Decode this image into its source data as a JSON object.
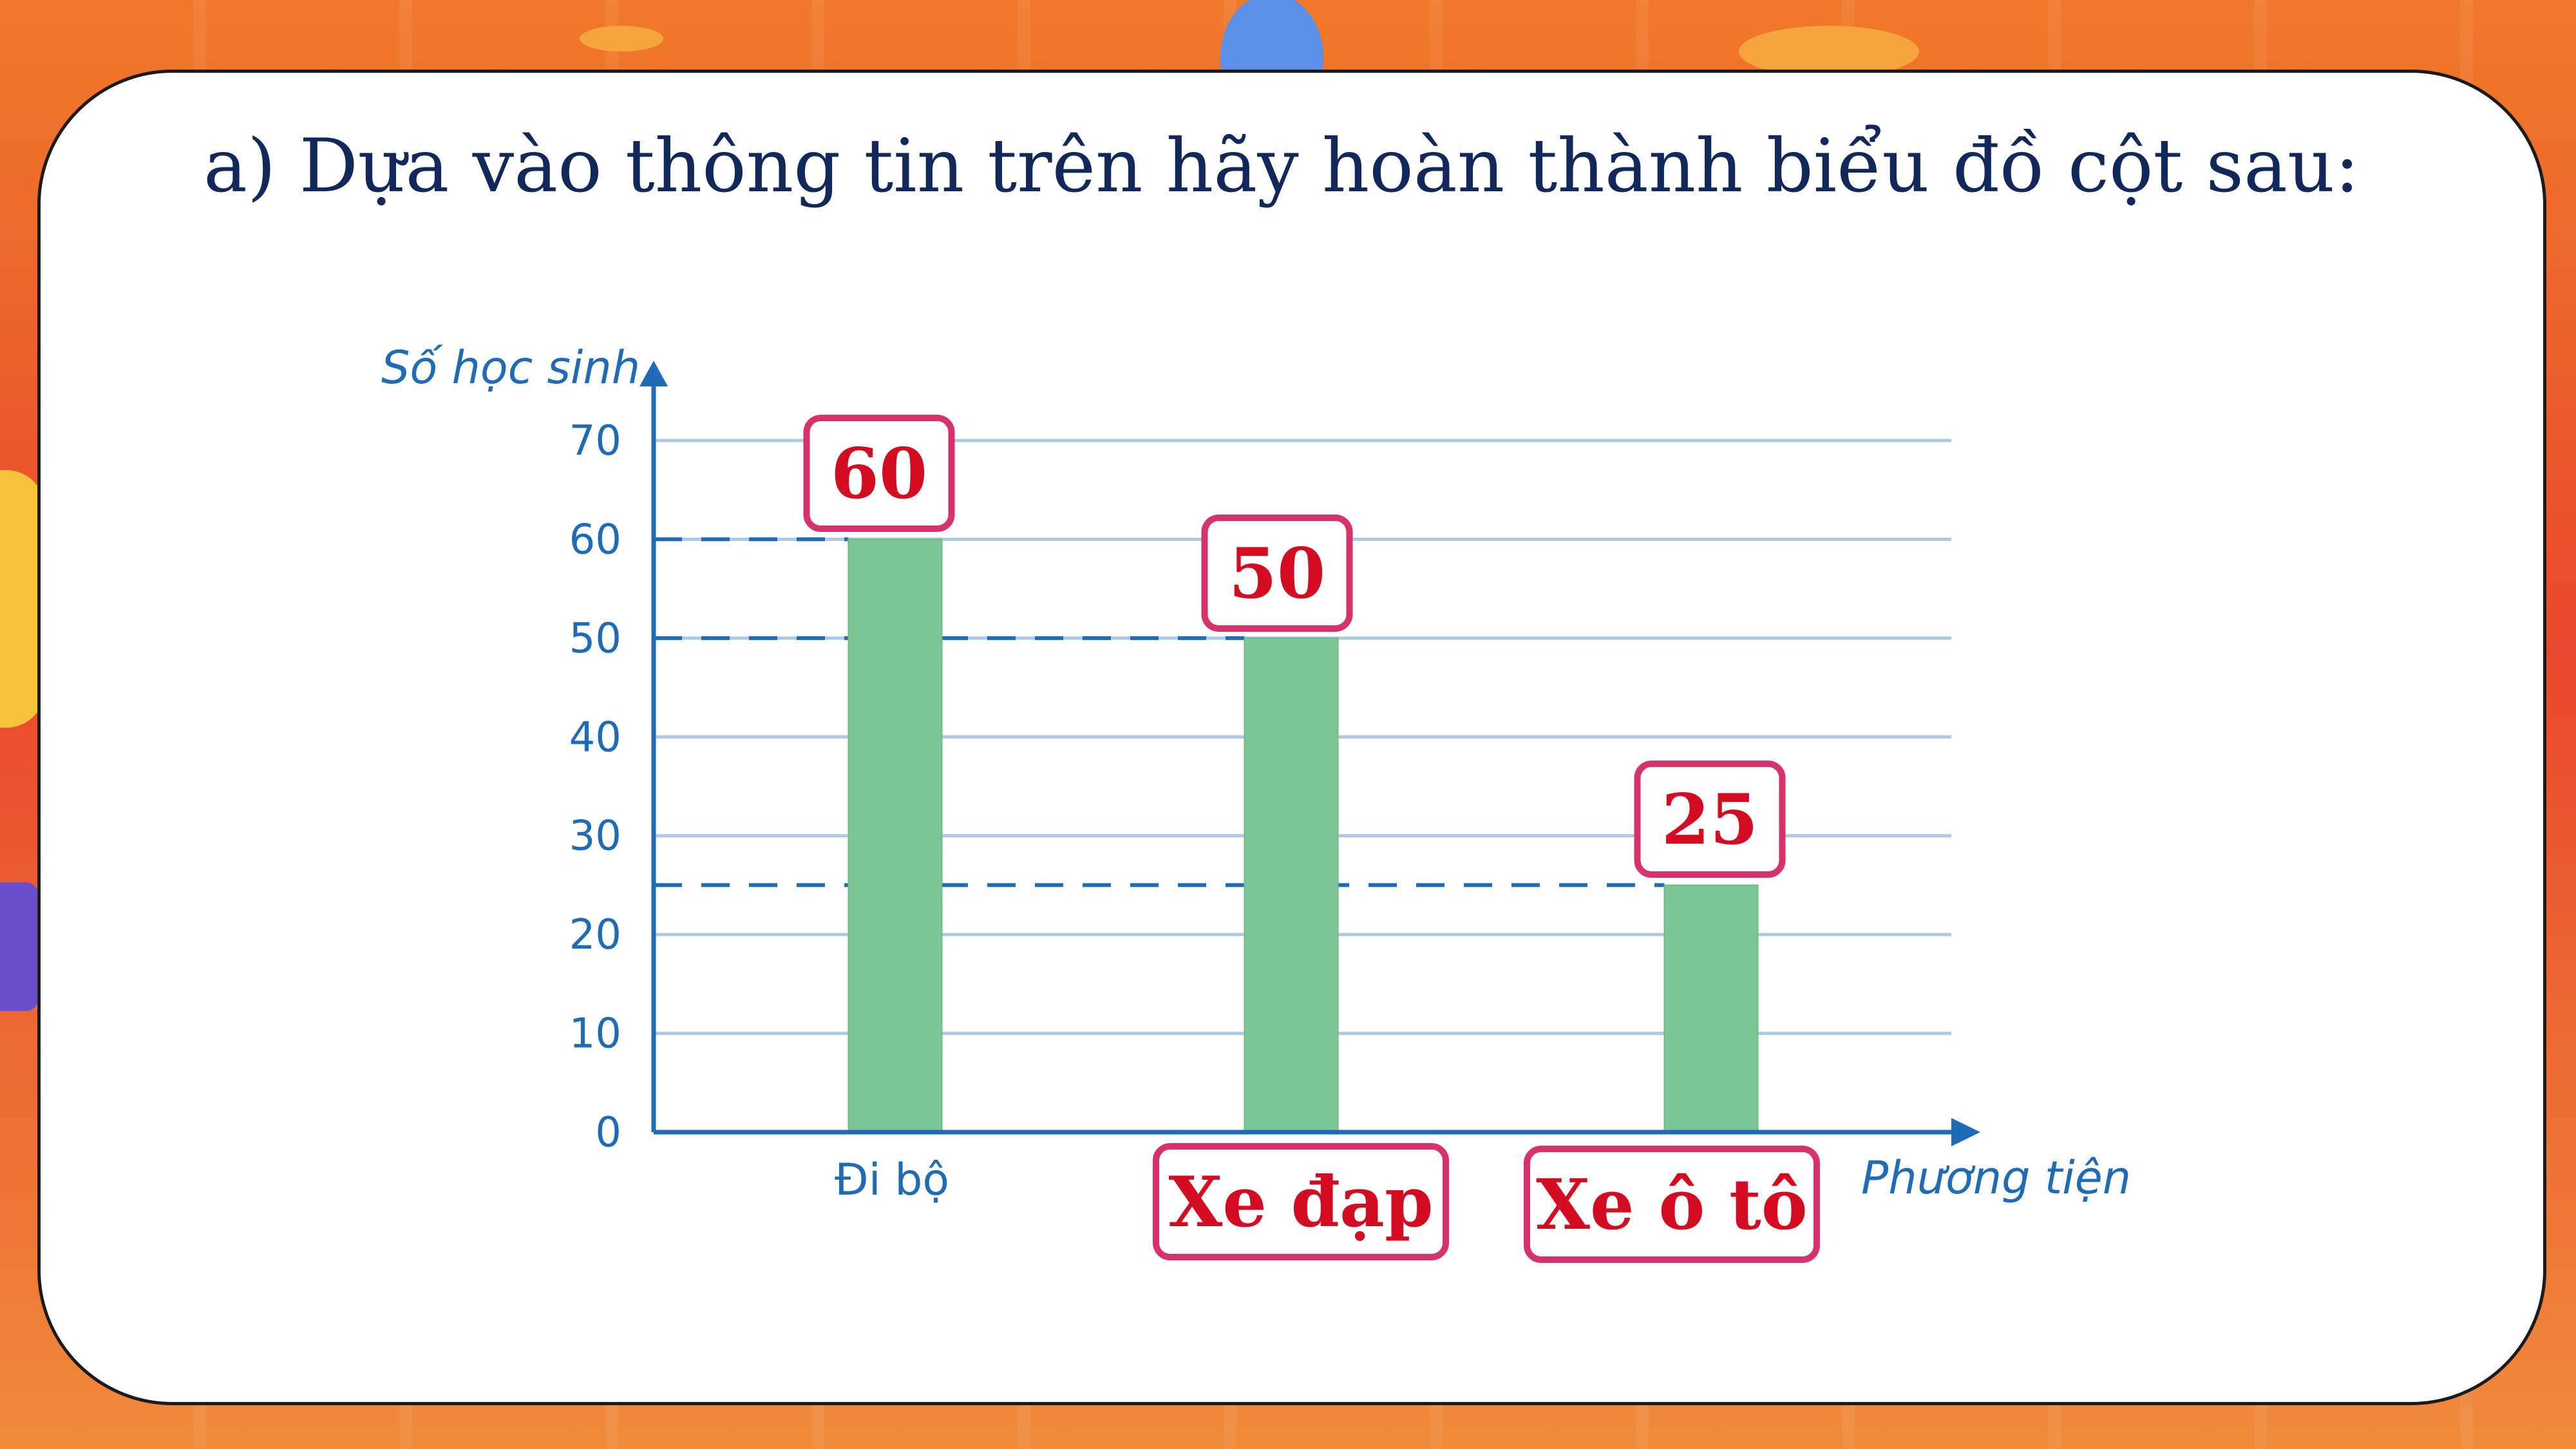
{
  "slide": {
    "title": "a) Dựa vào thông tin trên hãy hoàn thành biểu đồ cột sau:"
  },
  "colors": {
    "bar": "#7dc797",
    "axis": "#1f6bb6",
    "grid": "#a9c9e6",
    "answer_text": "#d40c22",
    "answer_border": "#d6336c"
  },
  "chart_data": {
    "type": "bar",
    "categories": [
      "Đi bộ",
      "Xe đạp",
      "Xe ô tô"
    ],
    "values": [
      60,
      50,
      25
    ],
    "data_labels": [
      "60",
      "50",
      "25"
    ],
    "title": "",
    "xlabel": "Phương tiện",
    "ylabel": "Số học sinh",
    "ylim": [
      0,
      70
    ],
    "yticks": [
      "0",
      "10",
      "20",
      "30",
      "40",
      "50",
      "60",
      "70"
    ],
    "grid": true,
    "reference_lines": "dashed lines from y-axis to the top of each bar",
    "answer_boxes": [
      "60",
      "50",
      "25",
      "Xe đạp",
      "Xe ô tô"
    ]
  }
}
